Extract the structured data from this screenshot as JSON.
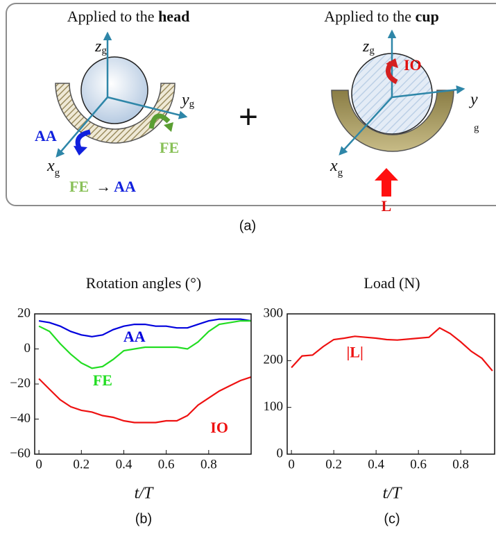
{
  "panel_a": {
    "left_title": [
      "Applied to the ",
      "head"
    ],
    "right_title": [
      "Applied to the ",
      "cup"
    ],
    "left_axes": {
      "z": [
        "z",
        "g"
      ],
      "y": [
        "y",
        "g"
      ],
      "x": [
        "x",
        "g"
      ]
    },
    "right_axes": {
      "z": [
        "z",
        "g"
      ],
      "y": [
        "y",
        "g"
      ],
      "x": [
        "x",
        "g"
      ]
    },
    "left_rotations": [
      "AA",
      "FE"
    ],
    "sequence": [
      "FE",
      "→",
      "AA"
    ],
    "plus": "+",
    "right_rotation": "IO",
    "load": "L",
    "caption": "(a)"
  },
  "chart_data": [
    {
      "type": "line",
      "title": "Rotation angles (°)",
      "xlabel": "t/T",
      "caption": "(b)",
      "x": [
        0,
        0.05,
        0.1,
        0.15,
        0.2,
        0.25,
        0.3,
        0.35,
        0.4,
        0.45,
        0.5,
        0.55,
        0.6,
        0.65,
        0.7,
        0.75,
        0.8,
        0.85,
        0.9,
        0.95,
        1
      ],
      "series": [
        {
          "name": "AA",
          "color": "#0000dd",
          "values": [
            16,
            15,
            13,
            10,
            8,
            7,
            8,
            11,
            13,
            14,
            14,
            13,
            13,
            12,
            12,
            14,
            16,
            17,
            17,
            17,
            16
          ]
        },
        {
          "name": "FE",
          "color": "#22dd22",
          "values": [
            13,
            10,
            3,
            -3,
            -8,
            -11,
            -10,
            -6,
            -1,
            0,
            1,
            1,
            1,
            1,
            0,
            4,
            10,
            14,
            15,
            16,
            16
          ]
        },
        {
          "name": "IO",
          "color": "#ee1111",
          "values": [
            -17,
            -23,
            -29,
            -33,
            -35,
            -36,
            -38,
            -39,
            -41,
            -42,
            -42,
            -42,
            -41,
            -41,
            -38,
            -32,
            -28,
            -24,
            -21,
            -18,
            -16
          ]
        }
      ],
      "xlim": [
        -0.02,
        1
      ],
      "ylim": [
        -60,
        20
      ],
      "xticks": [
        0,
        0.2,
        0.4,
        0.6,
        0.8
      ],
      "yticks": [
        {
          "value": -60,
          "label": "−60"
        },
        {
          "value": -40,
          "label": "−40"
        },
        {
          "value": -20,
          "label": "−20"
        },
        0,
        20
      ]
    },
    {
      "type": "line",
      "title": "Load (N)",
      "xlabel": "t/T",
      "caption": "(c)",
      "x": [
        0,
        0.05,
        0.1,
        0.15,
        0.2,
        0.25,
        0.3,
        0.35,
        0.4,
        0.45,
        0.5,
        0.55,
        0.6,
        0.65,
        0.7,
        0.75,
        0.8,
        0.85,
        0.9,
        0.95
      ],
      "series": [
        {
          "name": "|L|",
          "color": "#ee1111",
          "values": [
            185,
            210,
            212,
            230,
            245,
            248,
            252,
            250,
            248,
            245,
            244,
            246,
            248,
            250,
            270,
            258,
            240,
            220,
            205,
            178
          ]
        }
      ],
      "xlim": [
        -0.02,
        0.96
      ],
      "ylim": [
        0,
        300
      ],
      "xticks": [
        0,
        0.2,
        0.4,
        0.6,
        0.8
      ],
      "yticks": [
        0,
        100,
        200,
        300
      ]
    }
  ]
}
